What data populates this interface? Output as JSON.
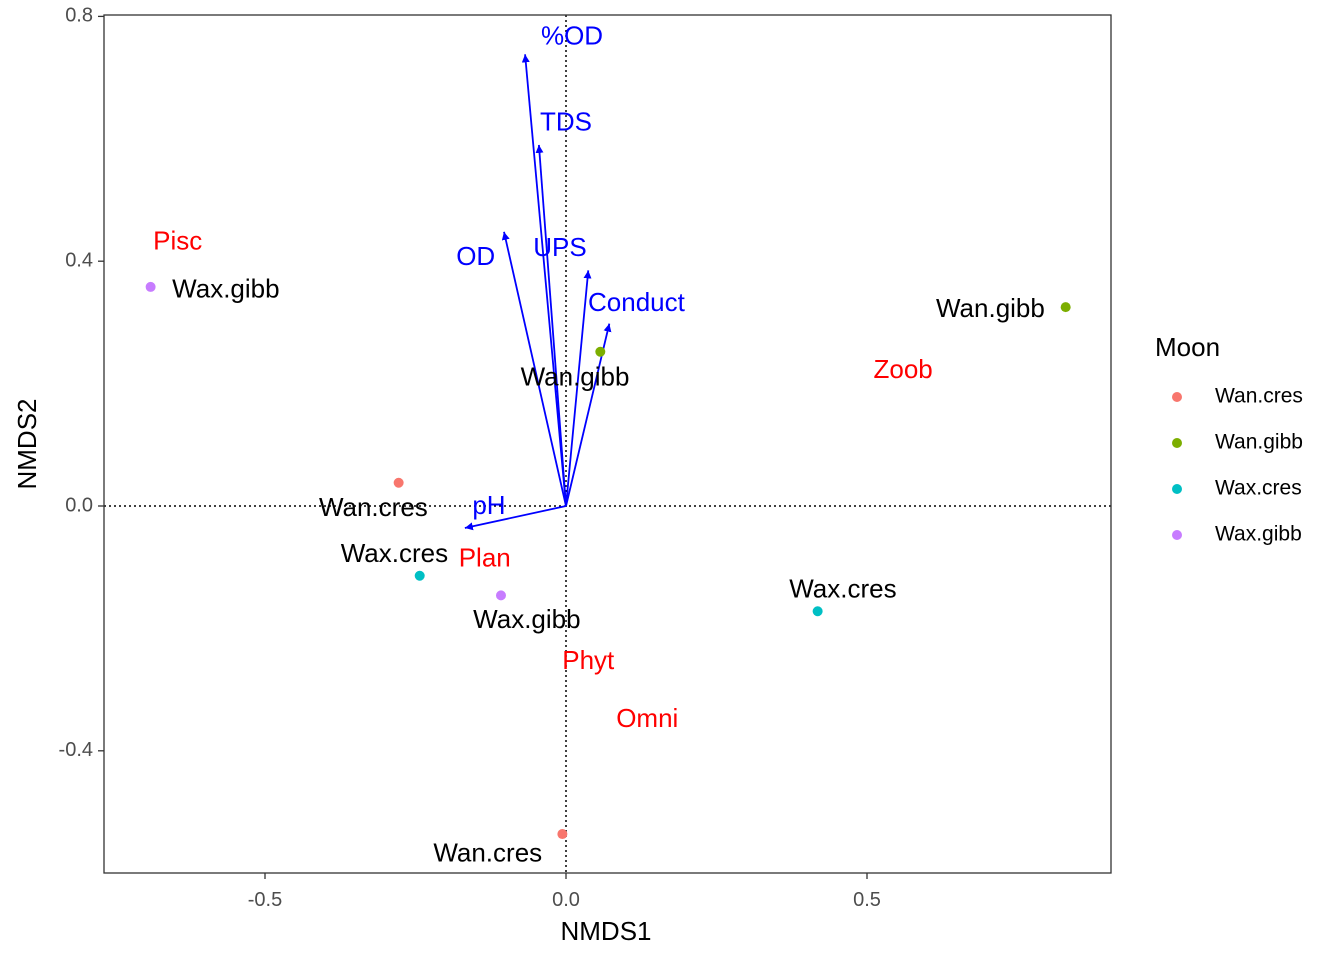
{
  "chart_data": {
    "type": "scatter",
    "title": "",
    "xlabel": "NMDS1",
    "ylabel": "NMDS2",
    "xlim": [
      -0.76,
      0.9
    ],
    "ylim": [
      -0.6,
      0.8
    ],
    "x_ticks": [
      -0.5,
      0.0,
      0.5
    ],
    "x_tick_labels": [
      "-0.5",
      "0.0",
      "0.5"
    ],
    "y_ticks": [
      -0.4,
      0.0,
      0.4,
      0.8
    ],
    "y_tick_labels": [
      "-0.4",
      "0.0",
      "0.4",
      "0.8"
    ],
    "grid": false,
    "reference_lines": {
      "x": 0,
      "y": 0,
      "style": "dotted"
    },
    "legend": {
      "title": "Moon",
      "placement": "right",
      "entries": [
        {
          "name": "Wan.cres",
          "color": "#F8766D"
        },
        {
          "name": "Wan.gibb",
          "color": "#7CAE00"
        },
        {
          "name": "Wax.cres",
          "color": "#00BFC4"
        },
        {
          "name": "Wax.gibb",
          "color": "#C77CFF"
        }
      ]
    },
    "sites": [
      {
        "x": -0.69,
        "y": 0.358,
        "group": "Wax.gibb",
        "label": "Wax.gibb",
        "label_x": -0.565,
        "label_y": 0.352
      },
      {
        "x": 0.83,
        "y": 0.325,
        "group": "Wan.gibb",
        "label": "Wan.gibb",
        "label_x": 0.705,
        "label_y": 0.32
      },
      {
        "x": 0.057,
        "y": 0.252,
        "group": "Wan.gibb",
        "label": "Wan.gibb",
        "label_x": 0.015,
        "label_y": 0.208
      },
      {
        "x": -0.278,
        "y": 0.038,
        "group": "Wan.cres",
        "label": "Wan.cres",
        "label_x": -0.32,
        "label_y": -0.005
      },
      {
        "x": -0.243,
        "y": -0.114,
        "group": "Wax.cres",
        "label": "Wax.cres",
        "label_x": -0.285,
        "label_y": -0.08
      },
      {
        "x": -0.108,
        "y": -0.146,
        "group": "Wax.gibb",
        "label": "Wax.gibb",
        "label_x": -0.065,
        "label_y": -0.188
      },
      {
        "x": 0.418,
        "y": -0.172,
        "group": "Wax.cres",
        "label": "Wax.cres",
        "label_x": 0.46,
        "label_y": -0.138
      },
      {
        "x": -0.006,
        "y": -0.536,
        "group": "Wan.cres",
        "label": "Wan.cres",
        "label_x": -0.13,
        "label_y": -0.57
      }
    ],
    "species": {
      "color": "#FF0000",
      "items": [
        {
          "label": "Pisc",
          "x": -0.645,
          "y": 0.43
        },
        {
          "label": "Zoob",
          "x": 0.56,
          "y": 0.22
        },
        {
          "label": "Plan",
          "x": -0.135,
          "y": -0.088
        },
        {
          "label": "Phyt",
          "x": 0.037,
          "y": -0.255
        },
        {
          "label": "Omni",
          "x": 0.135,
          "y": -0.35
        }
      ]
    },
    "vectors": {
      "color": "#0000FF",
      "origin": [
        0,
        0
      ],
      "items": [
        {
          "label": "%OD",
          "x": -0.068,
          "y": 0.738,
          "label_x": 0.01,
          "label_y": 0.765
        },
        {
          "label": "TDS",
          "x": -0.045,
          "y": 0.59,
          "label_x": 0.0,
          "label_y": 0.625
        },
        {
          "label": "OD",
          "x": -0.103,
          "y": 0.448,
          "label_x": -0.15,
          "label_y": 0.405
        },
        {
          "label": "UPS",
          "x": 0.037,
          "y": 0.385,
          "label_x": -0.01,
          "label_y": 0.42
        },
        {
          "label": "Conduct",
          "x": 0.072,
          "y": 0.298,
          "label_x": 0.117,
          "label_y": 0.33
        },
        {
          "label": "pH",
          "x": -0.168,
          "y": -0.036,
          "label_x": -0.128,
          "label_y": -0.002
        }
      ]
    }
  }
}
